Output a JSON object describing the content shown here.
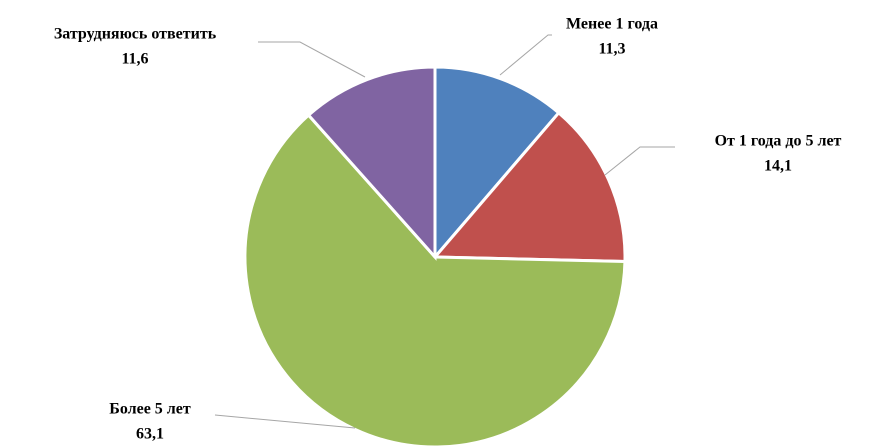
{
  "chart_data": {
    "type": "pie",
    "categories": [
      "Менее 1 года",
      "От 1 года до 5 лет",
      "Более 5 лет",
      "Затрудняюсь ответить"
    ],
    "values": [
      11.3,
      14.1,
      63.1,
      11.6
    ],
    "value_labels": [
      "11,3",
      "14,1",
      "63,1",
      "11,6"
    ],
    "colors": [
      "#4f81bd",
      "#c0504d",
      "#9bbb59",
      "#8064a2"
    ]
  }
}
